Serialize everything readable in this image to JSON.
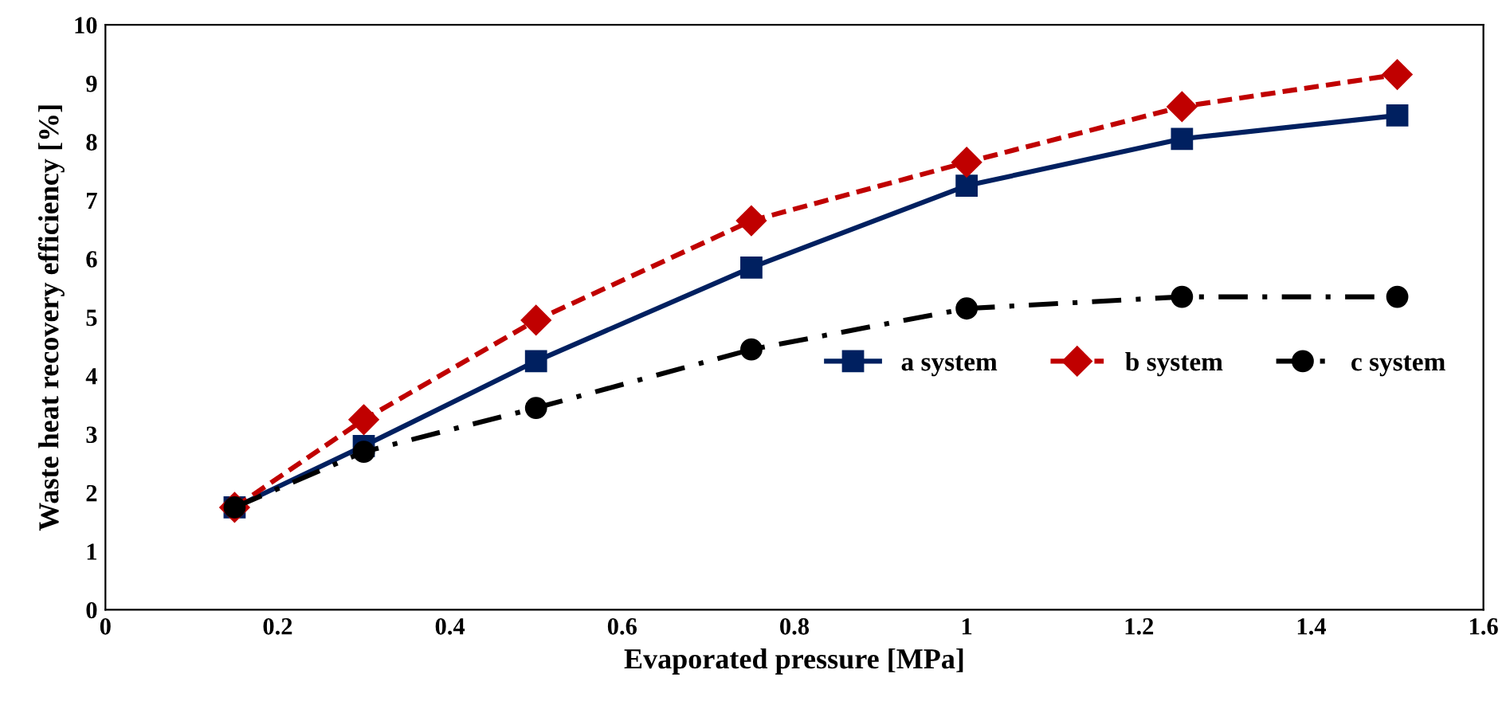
{
  "chart_data": {
    "type": "line",
    "xlabel": "Evaporated pressure [MPa]",
    "ylabel": "Waste heat recovery efficiency [%]",
    "x": [
      0.15,
      0.3,
      0.5,
      0.75,
      1.0,
      1.25,
      1.5
    ],
    "series": [
      {
        "name": "a system",
        "color": "#002060",
        "marker": "square",
        "line_style": "solid",
        "values": [
          1.75,
          2.8,
          4.25,
          5.85,
          7.25,
          8.05,
          8.45
        ]
      },
      {
        "name": "b system",
        "color": "#c00000",
        "marker": "diamond",
        "line_style": "dashed",
        "values": [
          1.75,
          3.25,
          4.95,
          6.65,
          7.65,
          8.6,
          9.15
        ]
      },
      {
        "name": "c system",
        "color": "#000000",
        "marker": "circle",
        "line_style": "dashdot",
        "values": [
          1.75,
          2.7,
          3.45,
          4.45,
          5.15,
          5.35,
          5.35
        ]
      }
    ],
    "xlim": [
      0,
      1.6
    ],
    "xticks": [
      0,
      0.2,
      0.4,
      0.6,
      0.8,
      1,
      1.2,
      1.4,
      1.6
    ],
    "ylim": [
      0,
      10
    ],
    "yticks": [
      0,
      1,
      2,
      3,
      4,
      5,
      6,
      7,
      8,
      9,
      10
    ],
    "grid": false,
    "legend": "center right"
  }
}
